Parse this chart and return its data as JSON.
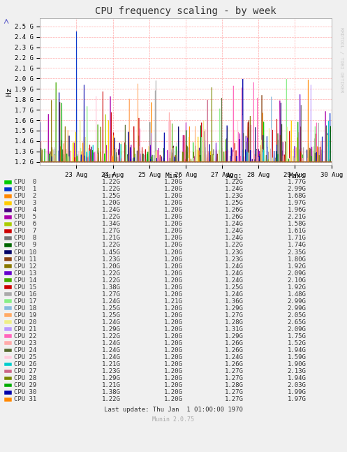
{
  "title": "CPU frequency scaling - by week",
  "ylabel": "Hz",
  "background_color": "#f0f0f0",
  "plot_bg_color": "#ffffff",
  "grid_color": "#ff8888",
  "yticks": [
    1.2,
    1.3,
    1.4,
    1.5,
    1.6,
    1.7,
    1.8,
    1.9,
    2.0,
    2.1,
    2.2,
    2.3,
    2.4,
    2.5
  ],
  "ytick_labels": [
    "1.2 G",
    "1.3 G",
    "1.4 G",
    "1.5 G",
    "1.6 G",
    "1.7 G",
    "1.8 G",
    "1.9 G",
    "2.0 G",
    "2.1 G",
    "2.2 G",
    "2.3 G",
    "2.4 G",
    "2.5 G"
  ],
  "ymin": 1.17,
  "ymax": 2.58,
  "xtick_labels": [
    "23 Aug",
    "24 Aug",
    "25 Aug",
    "26 Aug",
    "27 Aug",
    "28 Aug",
    "29 Aug",
    "30 Aug"
  ],
  "cpu_colors": [
    "#00cc00",
    "#0033cc",
    "#ff8800",
    "#ffcc00",
    "#4b0082",
    "#aa00aa",
    "#aacc00",
    "#cc0000",
    "#777777",
    "#006600",
    "#000066",
    "#8b4513",
    "#887700",
    "#6600cc",
    "#44aa00",
    "#cc0000",
    "#aaaaaa",
    "#88ee88",
    "#88bbdd",
    "#ffaa66",
    "#eeee88",
    "#bb99ff",
    "#ff66bb",
    "#ffaaaa",
    "#556b2f",
    "#ffccdd",
    "#00cccc",
    "#cc6688",
    "#778800",
    "#00aa00",
    "#0000aa",
    "#ff8800"
  ],
  "cpu_labels": [
    "CPU  0",
    "CPU  1",
    "CPU  2",
    "CPU  3",
    "CPU  4",
    "CPU  5",
    "CPU  6",
    "CPU  7",
    "CPU  8",
    "CPU  9",
    "CPU 10",
    "CPU 11",
    "CPU 12",
    "CPU 13",
    "CPU 14",
    "CPU 15",
    "CPU 16",
    "CPU 17",
    "CPU 18",
    "CPU 19",
    "CPU 20",
    "CPU 21",
    "CPU 22",
    "CPU 23",
    "CPU 24",
    "CPU 25",
    "CPU 26",
    "CPU 27",
    "CPU 28",
    "CPU 29",
    "CPU 30",
    "CPU 31"
  ],
  "legend_data": [
    [
      "1.22G",
      "1.20G",
      "1.22G",
      "1.77G"
    ],
    [
      "1.22G",
      "1.20G",
      "1.24G",
      "2.99G"
    ],
    [
      "1.25G",
      "1.20G",
      "1.23G",
      "1.68G"
    ],
    [
      "1.20G",
      "1.20G",
      "1.25G",
      "1.97G"
    ],
    [
      "1.24G",
      "1.20G",
      "1.26G",
      "1.96G"
    ],
    [
      "1.22G",
      "1.20G",
      "1.26G",
      "2.21G"
    ],
    [
      "1.34G",
      "1.20G",
      "1.24G",
      "1.58G"
    ],
    [
      "1.27G",
      "1.20G",
      "1.24G",
      "1.61G"
    ],
    [
      "1.21G",
      "1.20G",
      "1.24G",
      "1.71G"
    ],
    [
      "1.22G",
      "1.20G",
      "1.22G",
      "1.74G"
    ],
    [
      "1.45G",
      "1.20G",
      "1.23G",
      "2.35G"
    ],
    [
      "1.23G",
      "1.20G",
      "1.23G",
      "1.80G"
    ],
    [
      "1.20G",
      "1.20G",
      "1.24G",
      "1.92G"
    ],
    [
      "1.22G",
      "1.20G",
      "1.24G",
      "2.09G"
    ],
    [
      "1.22G",
      "1.20G",
      "1.24G",
      "2.10G"
    ],
    [
      "1.38G",
      "1.20G",
      "1.25G",
      "1.92G"
    ],
    [
      "1.27G",
      "1.20G",
      "1.24G",
      "1.48G"
    ],
    [
      "1.24G",
      "1.21G",
      "1.36G",
      "2.99G"
    ],
    [
      "1.25G",
      "1.20G",
      "1.29G",
      "2.99G"
    ],
    [
      "1.25G",
      "1.20G",
      "1.27G",
      "2.05G"
    ],
    [
      "1.24G",
      "1.20G",
      "1.28G",
      "2.65G"
    ],
    [
      "1.29G",
      "1.20G",
      "1.31G",
      "2.09G"
    ],
    [
      "1.22G",
      "1.20G",
      "1.29G",
      "1.75G"
    ],
    [
      "1.24G",
      "1.20G",
      "1.26G",
      "1.52G"
    ],
    [
      "1.24G",
      "1.20G",
      "1.26G",
      "1.94G"
    ],
    [
      "1.24G",
      "1.20G",
      "1.24G",
      "1.59G"
    ],
    [
      "1.21G",
      "1.20G",
      "1.26G",
      "1.90G"
    ],
    [
      "1.23G",
      "1.20G",
      "1.27G",
      "2.13G"
    ],
    [
      "1.29G",
      "1.20G",
      "1.27G",
      "1.94G"
    ],
    [
      "1.21G",
      "1.20G",
      "1.28G",
      "2.03G"
    ],
    [
      "1.38G",
      "1.20G",
      "1.27G",
      "1.99G"
    ],
    [
      "1.22G",
      "1.20G",
      "1.27G",
      "1.97G"
    ]
  ],
  "watermark": "RRDTOOL / TOBI OETIKER",
  "footer": "Last update: Thu Jan  1 01:00:00 1970",
  "munin_version": "Munin 2.0.75"
}
